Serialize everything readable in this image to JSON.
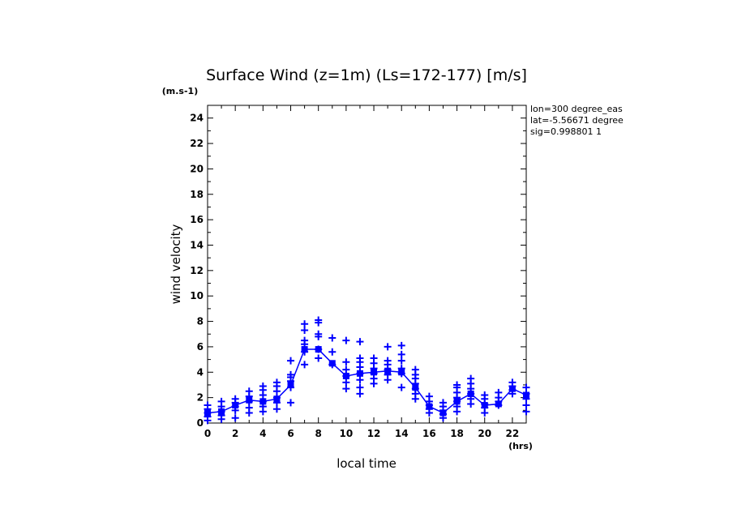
{
  "chart_data": {
    "type": "scatter",
    "title": "Surface Wind (z=1m) (Ls=172-177) [m/s]",
    "ylabel": "wind velocity",
    "yunit": "(m.s-1)",
    "xlabel": "local time",
    "xunit": "(hrs)",
    "xlim": [
      0,
      23
    ],
    "ylim": [
      0,
      25
    ],
    "x_ticks": [
      0,
      2,
      4,
      6,
      8,
      10,
      12,
      14,
      16,
      18,
      20,
      22
    ],
    "y_ticks": [
      0,
      2,
      4,
      6,
      8,
      10,
      12,
      14,
      16,
      18,
      20,
      22,
      24
    ],
    "info_lines": [
      "lon=300 degree_eas",
      "lat=-5.56671 degree",
      "sig=0.998801 1"
    ],
    "color": "#0000ff",
    "mean_series": {
      "x": [
        0,
        1,
        2,
        3,
        4,
        5,
        6,
        7,
        8,
        9,
        10,
        11,
        12,
        13,
        14,
        15,
        16,
        17,
        18,
        19,
        20,
        21,
        22,
        23
      ],
      "y": [
        0.8,
        0.9,
        1.4,
        1.8,
        1.7,
        1.9,
        3.0,
        5.8,
        5.8,
        4.7,
        3.7,
        3.9,
        4.0,
        4.1,
        4.0,
        2.8,
        1.3,
        0.8,
        1.7,
        2.3,
        1.4,
        1.5,
        2.7,
        2.2
      ]
    },
    "samples": [
      {
        "x": 0,
        "y": [
          0.2,
          0.5,
          0.8,
          1.1,
          1.4
        ]
      },
      {
        "x": 1,
        "y": [
          0.3,
          0.6,
          0.9,
          1.3,
          1.7
        ]
      },
      {
        "x": 2,
        "y": [
          0.4,
          1.0,
          1.3,
          1.6,
          1.9
        ]
      },
      {
        "x": 3,
        "y": [
          0.8,
          1.2,
          1.7,
          2.1,
          2.5
        ]
      },
      {
        "x": 4,
        "y": [
          0.9,
          1.3,
          1.7,
          2.2,
          2.6,
          2.9
        ]
      },
      {
        "x": 5,
        "y": [
          1.1,
          1.6,
          2.0,
          2.5,
          2.9,
          3.2
        ]
      },
      {
        "x": 6,
        "y": [
          1.6,
          2.8,
          3.3,
          3.6,
          3.8,
          4.9
        ]
      },
      {
        "x": 7,
        "y": [
          4.6,
          5.6,
          6.2,
          6.5,
          7.3,
          7.8
        ]
      },
      {
        "x": 8,
        "y": [
          5.1,
          5.8,
          6.8,
          7.0,
          7.9,
          8.1
        ]
      },
      {
        "x": 9,
        "y": [
          4.6,
          5.6,
          6.7
        ]
      },
      {
        "x": 10,
        "y": [
          2.7,
          3.2,
          3.7,
          4.2,
          4.8,
          6.5
        ]
      },
      {
        "x": 11,
        "y": [
          2.3,
          2.8,
          3.4,
          3.9,
          4.4,
          4.8,
          5.1,
          6.4
        ]
      },
      {
        "x": 12,
        "y": [
          3.1,
          3.5,
          3.9,
          4.3,
          4.7,
          5.1
        ]
      },
      {
        "x": 13,
        "y": [
          3.4,
          3.8,
          4.2,
          4.6,
          4.9,
          6.0
        ]
      },
      {
        "x": 14,
        "y": [
          2.8,
          3.9,
          4.3,
          4.9,
          5.4,
          6.1
        ]
      },
      {
        "x": 15,
        "y": [
          1.9,
          2.3,
          2.7,
          3.1,
          3.5,
          3.8,
          4.2
        ]
      },
      {
        "x": 16,
        "y": [
          0.8,
          1.1,
          1.4,
          1.7,
          2.1
        ]
      },
      {
        "x": 17,
        "y": [
          0.4,
          0.7,
          1.0,
          1.3,
          1.6
        ]
      },
      {
        "x": 18,
        "y": [
          0.9,
          1.3,
          1.7,
          2.0,
          2.4,
          2.8,
          3.0
        ]
      },
      {
        "x": 19,
        "y": [
          1.5,
          1.9,
          2.3,
          2.7,
          3.1,
          3.5
        ]
      },
      {
        "x": 20,
        "y": [
          0.8,
          1.2,
          1.5,
          1.9,
          2.2
        ]
      },
      {
        "x": 21,
        "y": [
          1.4,
          1.7,
          2.0,
          2.4
        ]
      },
      {
        "x": 22,
        "y": [
          2.3,
          2.6,
          2.9,
          3.2
        ]
      },
      {
        "x": 23,
        "y": [
          0.9,
          1.4,
          1.9,
          2.3,
          2.8
        ]
      }
    ]
  }
}
